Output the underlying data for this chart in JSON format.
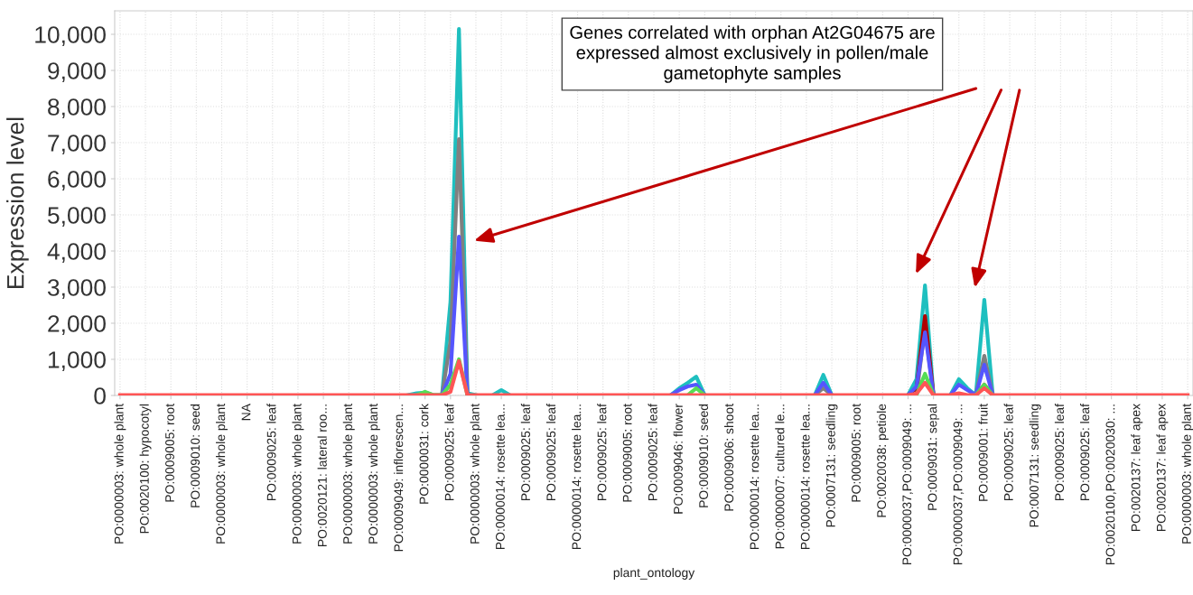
{
  "chart_data": {
    "type": "line",
    "ylabel": "Expression level",
    "xlabel": "plant_ontology",
    "annotations": [
      "Genes correlated with orphan At2G04675 are\nexpressed almost exclusively in pollen/male\ngametophyte samples"
    ],
    "categories": [
      "PO:0000003: whole plant",
      null,
      null,
      "PO:0020100: hypocotyl",
      null,
      null,
      "PO:0009005: root",
      null,
      null,
      "PO:0009010: seed",
      null,
      null,
      "PO:0000003: whole plant",
      null,
      null,
      "NA",
      null,
      null,
      "PO:0009025: leaf",
      null,
      null,
      "PO:0000003: whole plant",
      null,
      null,
      "PO:0020121: lateral roo...",
      null,
      null,
      "PO:0000003: whole plant",
      null,
      null,
      "PO:0000003: whole plant",
      null,
      null,
      "PO:0009049: inflorescen...",
      null,
      null,
      "PO:0000031: cork",
      null,
      null,
      "PO:0009025: leaf",
      null,
      null,
      "PO:0000003: whole plant",
      null,
      null,
      "PO:0000014: rosette lea...",
      null,
      null,
      "PO:0009025: leaf",
      null,
      null,
      "PO:0009025: leaf",
      null,
      null,
      "PO:0000014: rosette lea...",
      null,
      null,
      "PO:0009025: leaf",
      null,
      null,
      "PO:0009005: root",
      null,
      null,
      "PO:0009025: leaf",
      null,
      null,
      "PO:0009046: flower",
      null,
      null,
      "PO:0009010: seed",
      null,
      null,
      "PO:0009006: shoot",
      null,
      null,
      "PO:0000014: rosette lea...",
      null,
      null,
      "PO:0000007: cultured le...",
      null,
      null,
      "PO:0000014: rosette lea...",
      null,
      null,
      "PO:0007131: seedling",
      null,
      null,
      "PO:0009005: root",
      null,
      null,
      "PO:0020038: petiole",
      null,
      null,
      "PO:0000037,PO:0009049: ...",
      null,
      null,
      "PO:0009031: sepal",
      null,
      null,
      "PO:0000037,PO:0009049: ...",
      null,
      null,
      "PO:0009001: fruit",
      null,
      null,
      "PO:0009025: leaf",
      null,
      null,
      "PO:0007131: seedling",
      null,
      null,
      "PO:0009025: leaf",
      null,
      null,
      "PO:0009025: leaf",
      null,
      null,
      "PO:0020100,PO:0020030: ...",
      null,
      null,
      "PO:0020137: leaf apex",
      null,
      null,
      "PO:0020137: leaf apex",
      null,
      null,
      "PO:0000003: whole plant"
    ],
    "series": [
      {
        "color": "#1ebfbf",
        "values": [
          null,
          null,
          null,
          null,
          null,
          null,
          null,
          null,
          null,
          null,
          null,
          null,
          null,
          null,
          null,
          null,
          null,
          null,
          null,
          null,
          null,
          null,
          null,
          null,
          null,
          null,
          null,
          null,
          null,
          null,
          null,
          null,
          null,
          null,
          10,
          60,
          80,
          10,
          10,
          2600,
          10150,
          60,
          10,
          null,
          10,
          150,
          10,
          null,
          null,
          null,
          null,
          null,
          null,
          null,
          null,
          null,
          null,
          null,
          null,
          null,
          null,
          null,
          null,
          null,
          null,
          10,
          200,
          350,
          520,
          10,
          null,
          null,
          null,
          null,
          null,
          null,
          null,
          null,
          null,
          null,
          null,
          null,
          10,
          570,
          10,
          null,
          null,
          null,
          null,
          null,
          null,
          null,
          null,
          10,
          450,
          3050,
          10,
          null,
          10,
          450,
          200,
          10,
          2650,
          10,
          null,
          null,
          null,
          null,
          null,
          null,
          null,
          null,
          null,
          null,
          null,
          null,
          null,
          null,
          null,
          null,
          null,
          null,
          null,
          null,
          null,
          null,
          null
        ]
      },
      {
        "color": "#808080",
        "values": [
          null,
          null,
          null,
          null,
          null,
          null,
          null,
          null,
          null,
          null,
          null,
          null,
          null,
          null,
          null,
          null,
          null,
          null,
          null,
          null,
          null,
          null,
          null,
          null,
          null,
          null,
          null,
          null,
          null,
          null,
          null,
          null,
          null,
          null,
          null,
          null,
          null,
          null,
          10,
          1500,
          7100,
          10,
          null,
          null,
          null,
          null,
          null,
          null,
          null,
          null,
          null,
          null,
          null,
          null,
          null,
          null,
          null,
          null,
          null,
          null,
          null,
          null,
          null,
          null,
          null,
          null,
          null,
          null,
          null,
          null,
          null,
          null,
          null,
          null,
          null,
          null,
          null,
          null,
          null,
          null,
          null,
          null,
          10,
          200,
          10,
          null,
          null,
          null,
          null,
          null,
          null,
          null,
          null,
          null,
          10,
          1900,
          10,
          null,
          null,
          null,
          null,
          10,
          1100,
          10,
          null,
          null,
          null,
          null,
          null,
          null,
          null,
          null,
          null,
          null,
          null,
          null,
          null,
          null,
          null,
          null,
          null,
          null,
          null,
          null,
          null,
          null,
          null
        ]
      },
      {
        "color": "#b00000",
        "values": [
          null,
          null,
          null,
          null,
          null,
          null,
          null,
          null,
          null,
          null,
          null,
          null,
          null,
          null,
          null,
          null,
          null,
          null,
          null,
          null,
          null,
          null,
          null,
          null,
          null,
          null,
          null,
          null,
          null,
          null,
          null,
          null,
          null,
          null,
          null,
          null,
          null,
          null,
          null,
          null,
          null,
          null,
          null,
          null,
          null,
          null,
          null,
          null,
          null,
          null,
          null,
          null,
          null,
          null,
          null,
          null,
          null,
          null,
          null,
          null,
          null,
          null,
          null,
          null,
          null,
          null,
          null,
          null,
          null,
          null,
          null,
          null,
          null,
          null,
          null,
          null,
          null,
          null,
          null,
          null,
          null,
          null,
          null,
          null,
          null,
          null,
          null,
          null,
          null,
          null,
          null,
          null,
          null,
          10,
          200,
          2200,
          10,
          null,
          null,
          null,
          null,
          10,
          300,
          10,
          null,
          null,
          null,
          null,
          null,
          null,
          null,
          null,
          null,
          null,
          null,
          null,
          null,
          null,
          null,
          null,
          null,
          null,
          null,
          null,
          null,
          null,
          null
        ]
      },
      {
        "color": "#5555ff",
        "values": [
          null,
          null,
          null,
          null,
          null,
          null,
          null,
          null,
          null,
          null,
          null,
          null,
          null,
          null,
          null,
          null,
          null,
          null,
          null,
          null,
          null,
          null,
          null,
          null,
          null,
          null,
          null,
          null,
          null,
          null,
          null,
          null,
          null,
          null,
          null,
          null,
          null,
          null,
          10,
          600,
          4400,
          10,
          null,
          null,
          null,
          null,
          null,
          null,
          null,
          null,
          null,
          null,
          null,
          null,
          null,
          null,
          null,
          null,
          null,
          null,
          null,
          null,
          null,
          null,
          null,
          10,
          150,
          250,
          300,
          10,
          null,
          null,
          null,
          null,
          null,
          null,
          null,
          null,
          null,
          null,
          null,
          null,
          10,
          350,
          10,
          null,
          null,
          null,
          null,
          null,
          null,
          null,
          null,
          10,
          250,
          1750,
          10,
          null,
          10,
          300,
          150,
          10,
          850,
          10,
          null,
          null,
          null,
          null,
          null,
          null,
          null,
          null,
          null,
          null,
          null,
          null,
          null,
          null,
          null,
          null,
          null,
          null,
          null,
          null,
          null,
          null,
          null
        ]
      },
      {
        "color": "#55dd55",
        "values": [
          null,
          null,
          null,
          null,
          null,
          null,
          null,
          null,
          null,
          null,
          null,
          null,
          null,
          null,
          null,
          null,
          null,
          null,
          null,
          null,
          null,
          null,
          null,
          null,
          null,
          null,
          null,
          null,
          null,
          null,
          null,
          null,
          null,
          null,
          null,
          10,
          100,
          10,
          10,
          300,
          1000,
          10,
          null,
          null,
          null,
          null,
          null,
          null,
          null,
          null,
          null,
          null,
          null,
          null,
          null,
          null,
          null,
          null,
          null,
          null,
          null,
          null,
          null,
          null,
          null,
          null,
          null,
          10,
          200,
          10,
          null,
          null,
          null,
          null,
          null,
          null,
          null,
          null,
          null,
          null,
          null,
          null,
          null,
          null,
          null,
          null,
          null,
          null,
          null,
          null,
          null,
          null,
          null,
          null,
          10,
          600,
          10,
          null,
          null,
          null,
          null,
          10,
          300,
          10,
          null,
          null,
          null,
          null,
          null,
          null,
          null,
          null,
          null,
          null,
          null,
          null,
          null,
          null,
          null,
          null,
          null,
          null,
          null,
          null,
          null,
          null,
          null
        ]
      },
      {
        "color": "#ff5555",
        "values": [
          10,
          10,
          10,
          10,
          10,
          10,
          10,
          10,
          10,
          10,
          10,
          10,
          10,
          10,
          10,
          10,
          10,
          10,
          10,
          10,
          10,
          10,
          10,
          10,
          10,
          10,
          10,
          10,
          10,
          10,
          10,
          10,
          10,
          10,
          10,
          10,
          10,
          10,
          10,
          100,
          950,
          10,
          10,
          10,
          10,
          10,
          10,
          10,
          10,
          10,
          10,
          10,
          10,
          10,
          10,
          10,
          10,
          10,
          10,
          10,
          10,
          10,
          10,
          10,
          10,
          10,
          10,
          10,
          10,
          10,
          10,
          10,
          10,
          10,
          10,
          10,
          10,
          10,
          10,
          10,
          10,
          10,
          10,
          10,
          10,
          10,
          10,
          10,
          10,
          10,
          10,
          10,
          10,
          10,
          50,
          350,
          10,
          10,
          10,
          60,
          10,
          10,
          200,
          10,
          10,
          10,
          10,
          10,
          10,
          10,
          10,
          10,
          10,
          10,
          10,
          10,
          10,
          10,
          10,
          10,
          10,
          10,
          10,
          10,
          10,
          10,
          10
        ]
      }
    ],
    "ylim": [
      0,
      10650
    ],
    "yticks": [
      0,
      {
        "value": 1000,
        "label": "1,000"
      },
      {
        "value": 2000,
        "label": "2,000"
      },
      {
        "value": 3000,
        "label": "3,000"
      },
      {
        "value": 4000,
        "label": "4,000"
      },
      {
        "value": 5000,
        "label": "5,000"
      },
      {
        "value": 6000,
        "label": "6,000"
      },
      {
        "value": 7000,
        "label": "7,000"
      },
      {
        "value": 8000,
        "label": "8,000"
      },
      {
        "value": 9000,
        "label": "9,000"
      },
      {
        "value": 10000,
        "label": "10,000"
      }
    ],
    "grid": true,
    "legend": false,
    "marker": "none",
    "line_style": "solid"
  }
}
